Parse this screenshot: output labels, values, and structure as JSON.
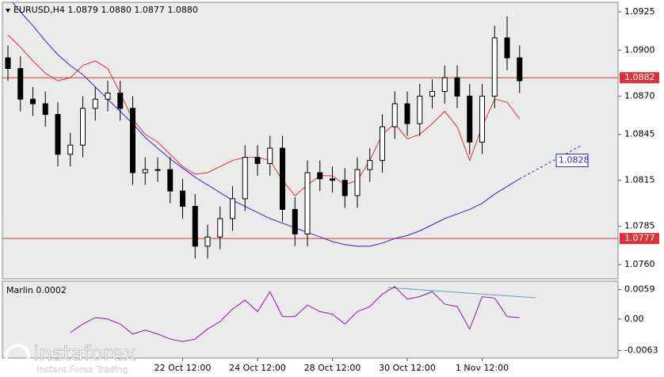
{
  "watermark": {
    "brand": "instaforex",
    "tagline": "Instant Forex Trading"
  },
  "chart_data": [
    {
      "type": "candlestick",
      "title": "EURUSD,H4  1.0879 1.0880 1.0877 1.0880",
      "categories": [
        null,
        null,
        null,
        null,
        null,
        null,
        null,
        null,
        null,
        null,
        null,
        null,
        null,
        null,
        "22 Oct 12:00",
        null,
        null,
        null,
        null,
        null,
        "24 Oct 12:00",
        null,
        null,
        null,
        null,
        null,
        "28 Oct 12:00",
        null,
        null,
        null,
        null,
        null,
        "30 Oct 12:00",
        null,
        null,
        null,
        null,
        null,
        "1 Nov 12:00",
        null,
        null,
        null
      ],
      "open": [
        1.0895,
        1.0888,
        1.0868,
        1.0865,
        1.0858,
        1.0832,
        1.0838,
        1.0862,
        1.0868,
        1.0872,
        1.0862,
        1.082,
        1.0822,
        1.0822,
        1.0808,
        1.0798,
        1.0772,
        1.0778,
        1.079,
        1.0803,
        1.083,
        1.0826,
        1.0836,
        1.0796,
        1.078,
        1.082,
        1.0816,
        1.0815,
        1.0805,
        1.0822,
        1.0828,
        1.085,
        1.0865,
        1.0852,
        1.087,
        1.0873,
        1.0882,
        1.087,
        1.084,
        1.087,
        1.0908,
        1.0895
      ],
      "high": [
        1.0903,
        1.0896,
        1.0876,
        1.0873,
        1.0866,
        1.0846,
        1.087,
        1.0876,
        1.088,
        1.088,
        1.087,
        1.083,
        1.083,
        1.083,
        1.0816,
        1.0806,
        1.0786,
        1.0798,
        1.0811,
        1.0838,
        1.0838,
        1.0844,
        1.0844,
        1.0804,
        1.0828,
        1.0828,
        1.0824,
        1.0823,
        1.083,
        1.0836,
        1.0858,
        1.0873,
        1.0873,
        1.0878,
        1.0881,
        1.089,
        1.089,
        1.0878,
        1.0878,
        1.0916,
        1.0922,
        1.0903
      ],
      "low": [
        1.088,
        1.086,
        1.0857,
        1.085,
        1.0824,
        1.0824,
        1.083,
        1.0854,
        1.086,
        1.0854,
        1.0812,
        1.0812,
        1.0814,
        1.08,
        1.079,
        1.0764,
        1.0764,
        1.077,
        1.0782,
        1.0795,
        1.0818,
        1.0818,
        1.0788,
        1.0772,
        1.0772,
        1.0808,
        1.0807,
        1.0797,
        1.0797,
        1.0814,
        1.082,
        1.0842,
        1.0844,
        1.0844,
        1.0862,
        1.0865,
        1.0862,
        1.0832,
        1.0832,
        1.0862,
        1.0887,
        1.0872
      ],
      "close": [
        1.0888,
        1.0868,
        1.0865,
        1.0858,
        1.0832,
        1.0838,
        1.0862,
        1.0868,
        1.0872,
        1.0862,
        1.082,
        1.0822,
        1.0822,
        1.0808,
        1.0798,
        1.0772,
        1.0778,
        1.079,
        1.0803,
        1.083,
        1.0826,
        1.0836,
        1.0796,
        1.078,
        1.082,
        1.0816,
        1.0815,
        1.0805,
        1.0822,
        1.0828,
        1.085,
        1.0865,
        1.0852,
        1.087,
        1.0873,
        1.0882,
        1.087,
        1.084,
        1.087,
        1.0908,
        1.0895,
        1.088
      ],
      "lines": [
        {
          "color": "#e0303a",
          "values": [
            1.091,
            1.0902,
            1.0893,
            1.0885,
            1.088,
            1.0882,
            1.089,
            1.0893,
            1.0888,
            1.0872,
            1.0855,
            1.0845,
            1.084,
            1.0832,
            1.0824,
            1.0819,
            1.082,
            1.0824,
            1.0828,
            1.083,
            1.083,
            1.0828,
            1.0815,
            1.0805,
            1.0812,
            1.0818,
            1.0818,
            1.0812,
            1.0815,
            1.0828,
            1.0845,
            1.0852,
            1.0842,
            1.0845,
            1.0852,
            1.086,
            1.085,
            1.0828,
            1.085,
            1.0868,
            1.0866,
            1.0855
          ]
        },
        {
          "color": "#2a2ab8",
          "values": [
            1.0935,
            1.0925,
            1.0916,
            1.0906,
            1.0897,
            1.089,
            1.0884,
            1.0876,
            1.0868,
            1.086,
            1.0852,
            1.0843,
            1.0836,
            1.0829,
            1.0823,
            1.0817,
            1.0812,
            1.0807,
            1.0802,
            1.0798,
            1.0794,
            1.079,
            1.0787,
            1.0784,
            1.0781,
            1.0778,
            1.0775,
            1.0773,
            1.0772,
            1.0772,
            1.0774,
            1.0777,
            1.0779,
            1.0782,
            1.0786,
            1.079,
            1.0793,
            1.0796,
            1.08,
            1.0806,
            1.0811,
            1.0816
          ]
        }
      ],
      "levels": [
        {
          "value": 1.0882,
          "color": "#e0303a"
        },
        {
          "value": 1.0777,
          "color": "#e0303a"
        }
      ],
      "marker": {
        "value": 1.0828,
        "color": "#2a2ab8"
      },
      "ylim": [
        1.07507,
        1.09312
      ],
      "yticks": [
        1.0925,
        {
          "value": 1.09,
          "label": "1.0900"
        },
        {
          "value": 1.087,
          "label": "1.0870"
        },
        1.0845,
        1.0815,
        1.0785,
        {
          "value": 1.076,
          "label": "1.0760"
        }
      ]
    },
    {
      "type": "line",
      "title": "Marlin 0.0002",
      "color": "#8a1aa8",
      "values": [
        null,
        null,
        null,
        null,
        null,
        -0.0027,
        -0.001,
        0.0003,
        0.0,
        -0.001,
        -0.003,
        -0.0022,
        -0.003,
        -0.004,
        -0.0045,
        -0.004,
        -0.002,
        -0.0005,
        0.002,
        0.0038,
        0.0015,
        0.0055,
        0.0005,
        0.0005,
        0.0028,
        0.0015,
        0.001,
        -0.001,
        0.0015,
        0.0025,
        0.005,
        0.0065,
        0.004,
        0.0045,
        0.0055,
        0.003,
        0.0025,
        -0.002,
        0.0045,
        0.0042,
        0.0005,
        0.0003
      ],
      "ylim": [
        -0.0078,
        0.0076
      ],
      "yticks": [
        0.0059,
        {
          "value": 0,
          "label": "0.00"
        },
        -0.0063
      ]
    }
  ]
}
